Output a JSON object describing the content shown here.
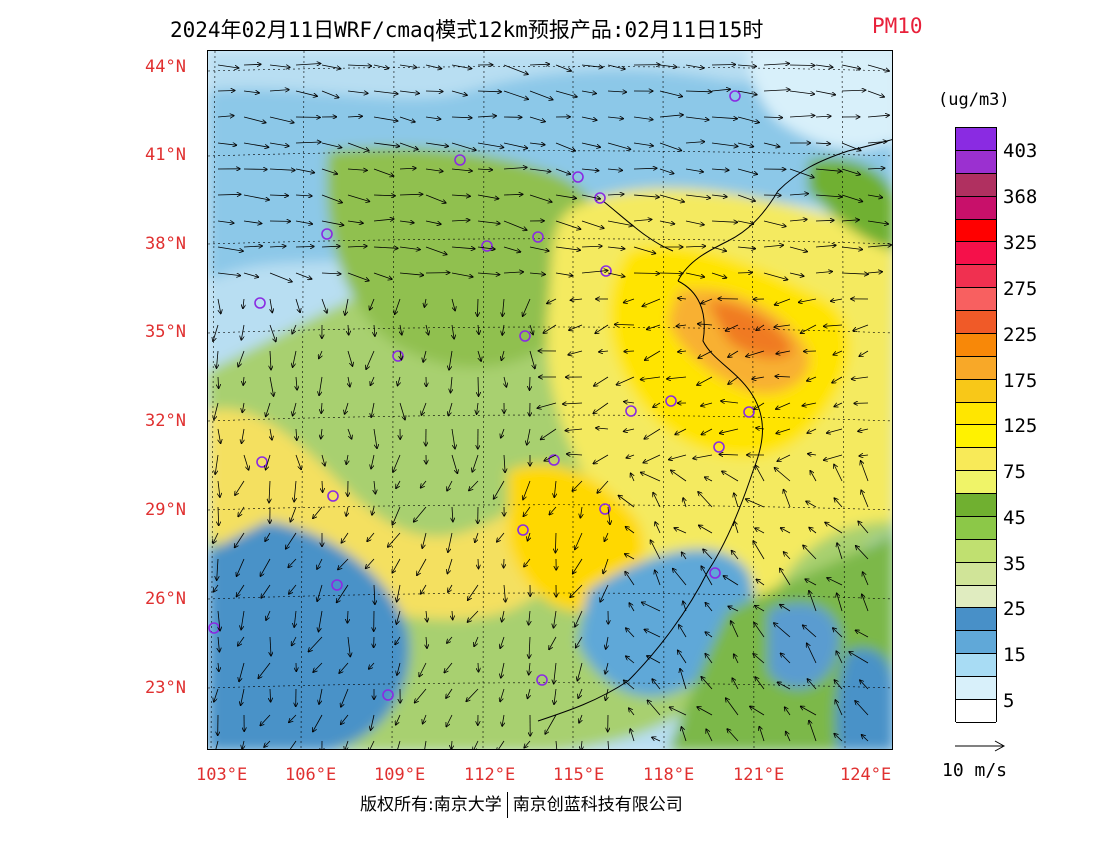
{
  "header": {
    "title": "2024年02月11日WRF/cmaq模式12km预报产品:02月11日15时",
    "variable": "PM10",
    "variable_color": "#e8203a"
  },
  "map": {
    "lat_labels": [
      "44°N",
      "41°N",
      "38°N",
      "35°N",
      "32°N",
      "29°N",
      "26°N",
      "23°N"
    ],
    "lon_labels": [
      "103°E",
      "106°E",
      "109°E",
      "112°E",
      "115°E",
      "118°E",
      "121°E",
      "124°E"
    ],
    "label_color": "#e03030"
  },
  "legend": {
    "unit": "(ug/m3)",
    "colors": [
      "#8a2be2",
      "#9b30d0",
      "#b03060",
      "#c8106a",
      "#ff0000",
      "#f5104a",
      "#f03050",
      "#f86060",
      "#f05a28",
      "#f88808",
      "#f8a828",
      "#f8c818",
      "#ffe600",
      "#fff200",
      "#f8ea58",
      "#f0f468",
      "#70b030",
      "#8cc848",
      "#c0e070",
      "#d0e498",
      "#e0ecc0",
      "#4890c8",
      "#60a8d8",
      "#a8dcf4",
      "#d8f0fa",
      "#ffffff"
    ],
    "labels": [
      "403",
      "368",
      "325",
      "275",
      "225",
      "175",
      "125",
      "75",
      "45",
      "35",
      "25",
      "15",
      "5"
    ],
    "vector_reference": "10 m/s"
  },
  "footer": {
    "copyright_left": "版权所有:南京大学",
    "copyright_right": "南京创蓝科技有限公司"
  }
}
